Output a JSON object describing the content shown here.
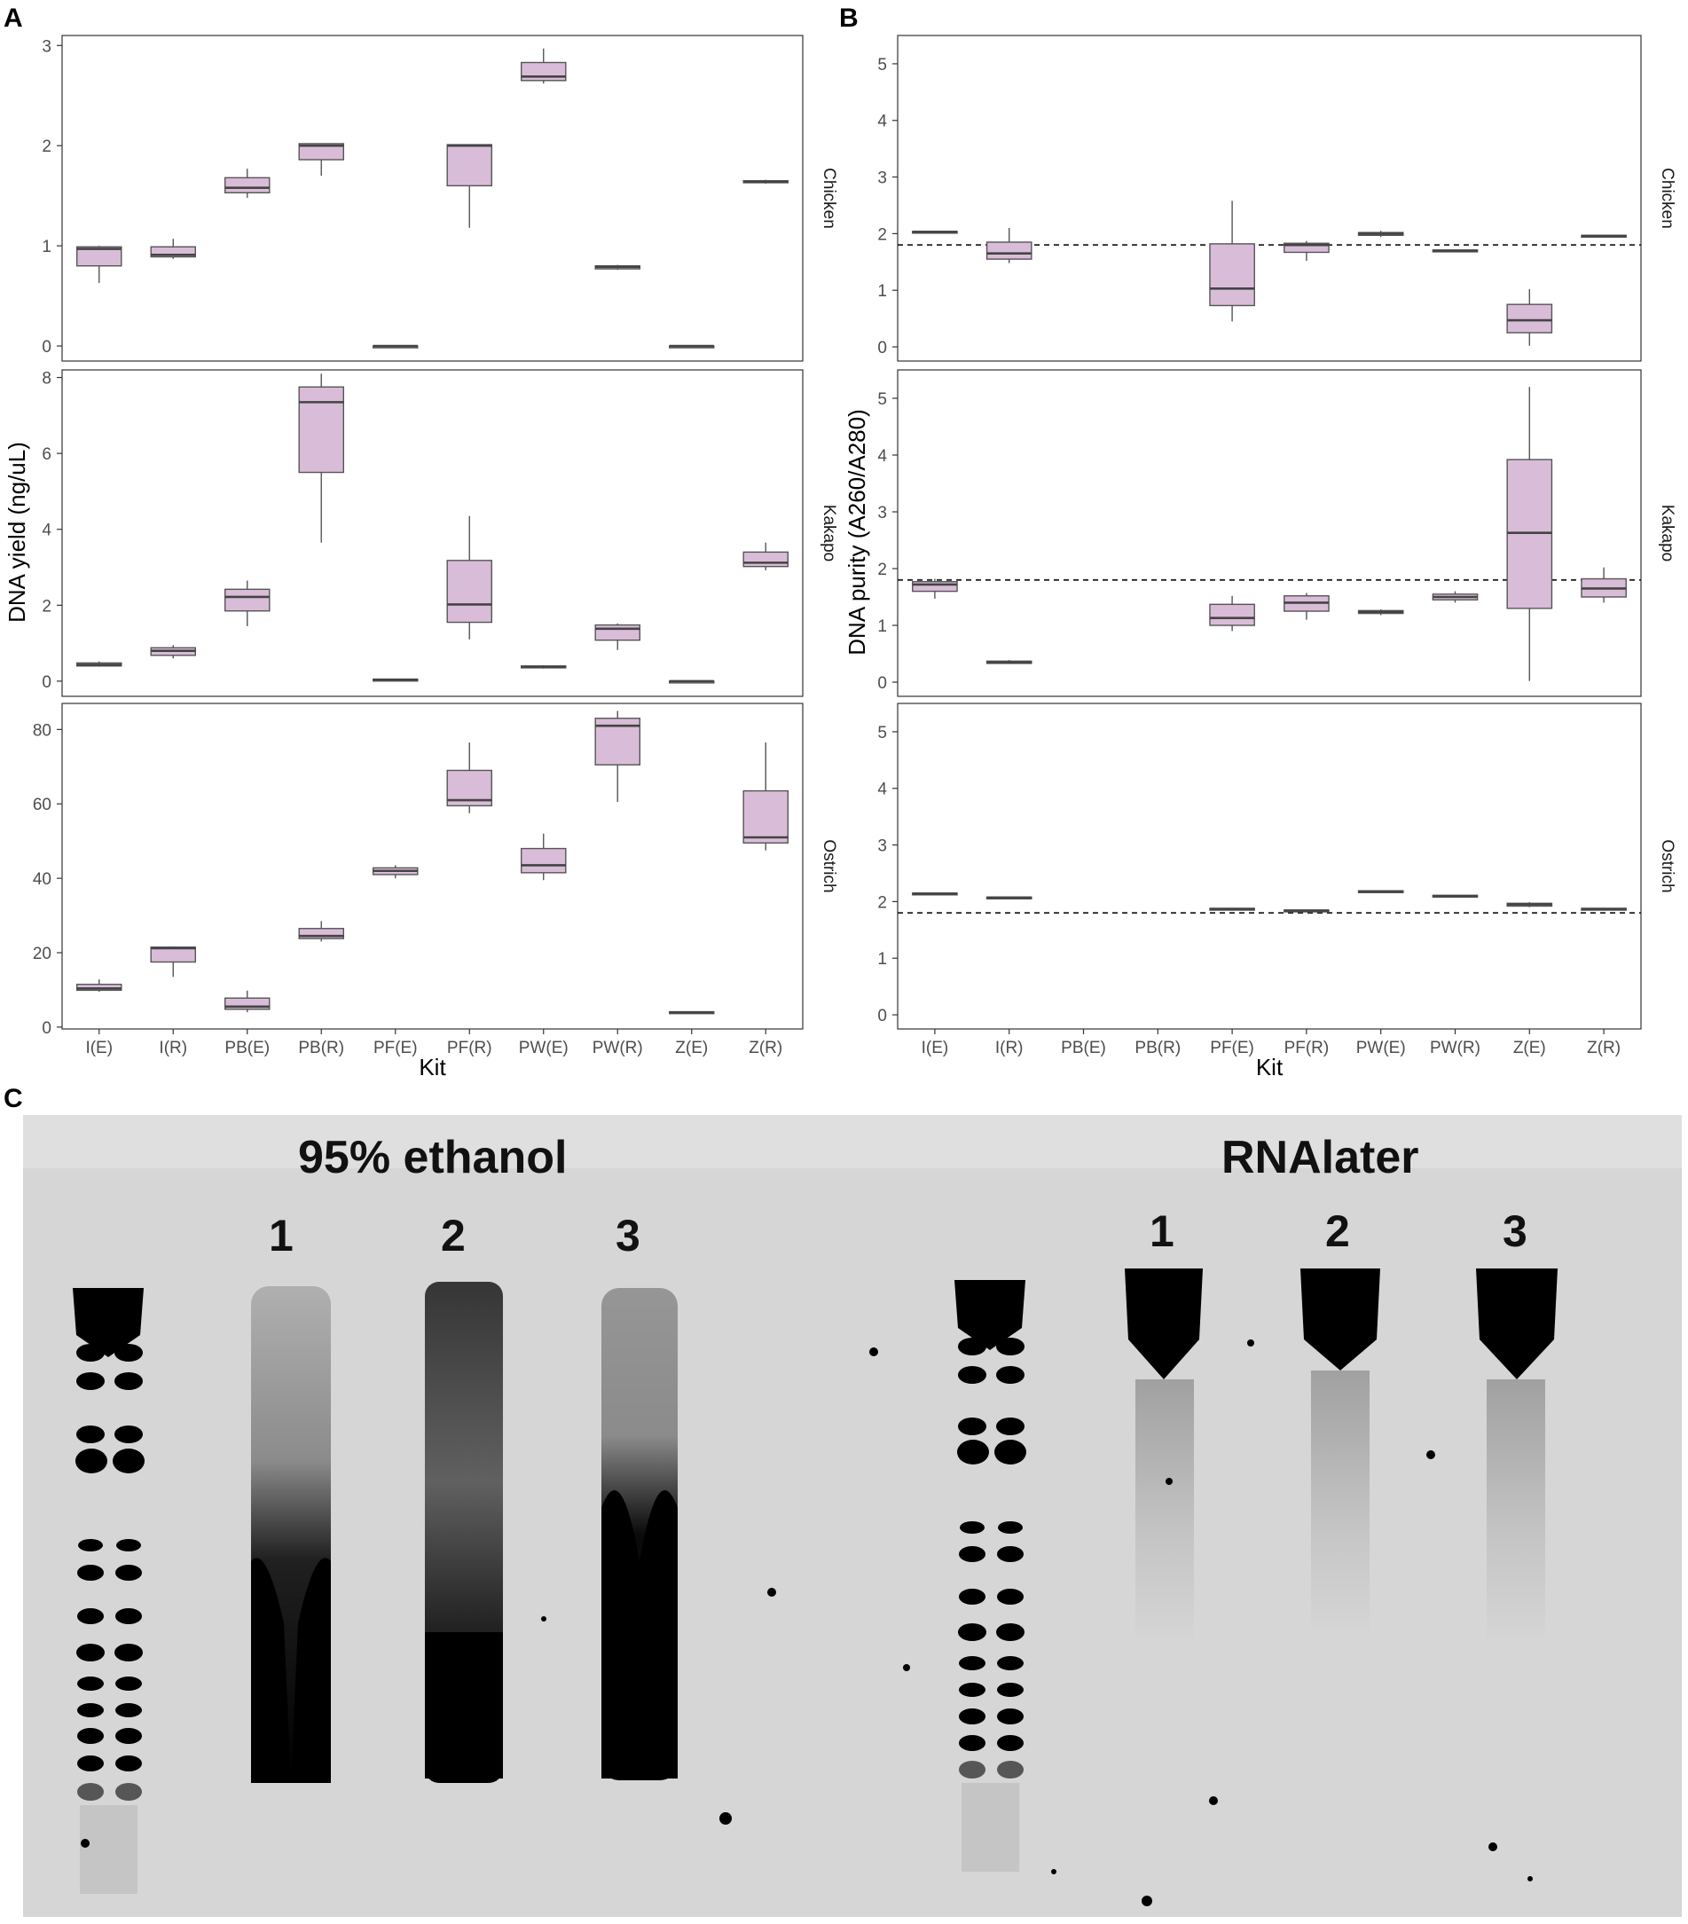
{
  "panels": {
    "a": "A",
    "b": "B",
    "c": "C"
  },
  "chart_data": [
    {
      "type": "box",
      "panel": "A",
      "ylabel": "DNA yield (ng/uL)",
      "xlabel": "Kit",
      "categories": [
        "I(E)",
        "I(R)",
        "PB(E)",
        "PB(R)",
        "PF(E)",
        "PF(R)",
        "PW(E)",
        "PW(R)",
        "Z(E)",
        "Z(R)"
      ],
      "box_fill": "#d9bdd8",
      "facets": [
        {
          "name": "Chicken",
          "ylim": [
            -0.15,
            3.1
          ],
          "yticks": [
            0,
            1,
            2,
            3
          ],
          "boxes": [
            {
              "min": 0.63,
              "q1": 0.8,
              "median": 0.97,
              "q3": 0.99,
              "max": 1.0
            },
            {
              "min": 0.87,
              "q1": 0.89,
              "median": 0.91,
              "q3": 0.99,
              "max": 1.07
            },
            {
              "min": 1.48,
              "q1": 1.53,
              "median": 1.58,
              "q3": 1.68,
              "max": 1.77
            },
            {
              "min": 1.7,
              "q1": 1.86,
              "median": 2.0,
              "q3": 2.02,
              "max": 2.02
            },
            {
              "min": 0.0,
              "q1": 0.0,
              "median": 0.0,
              "q3": 0.0,
              "max": 0.0
            },
            {
              "min": 1.18,
              "q1": 1.6,
              "median": 2.0,
              "q3": 2.01,
              "max": 2.01
            },
            {
              "min": 2.62,
              "q1": 2.65,
              "median": 2.69,
              "q3": 2.83,
              "max": 2.97
            },
            {
              "min": 0.76,
              "q1": 0.77,
              "median": 0.79,
              "q3": 0.8,
              "max": 0.81
            },
            {
              "min": 0.0,
              "q1": 0.0,
              "median": 0.0,
              "q3": 0.0,
              "max": 0.0
            },
            {
              "min": 1.62,
              "q1": 1.63,
              "median": 1.64,
              "q3": 1.65,
              "max": 1.66
            }
          ]
        },
        {
          "name": "Kakapo",
          "ylim": [
            -0.4,
            8.2
          ],
          "yticks": [
            0,
            2,
            4,
            6,
            8
          ],
          "boxes": [
            {
              "min": 0.38,
              "q1": 0.4,
              "median": 0.43,
              "q3": 0.48,
              "max": 0.52
            },
            {
              "min": 0.6,
              "q1": 0.68,
              "median": 0.8,
              "q3": 0.88,
              "max": 0.95
            },
            {
              "min": 1.45,
              "q1": 1.85,
              "median": 2.22,
              "q3": 2.42,
              "max": 2.65
            },
            {
              "min": 3.65,
              "q1": 5.5,
              "median": 7.35,
              "q3": 7.75,
              "max": 8.1
            },
            {
              "min": 0.02,
              "q1": 0.03,
              "median": 0.04,
              "q3": 0.05,
              "max": 0.06
            },
            {
              "min": 1.1,
              "q1": 1.55,
              "median": 2.02,
              "q3": 3.18,
              "max": 4.35
            },
            {
              "min": 0.33,
              "q1": 0.35,
              "median": 0.38,
              "q3": 0.4,
              "max": 0.42
            },
            {
              "min": 0.82,
              "q1": 1.08,
              "median": 1.38,
              "q3": 1.48,
              "max": 1.52
            },
            {
              "min": 0.0,
              "q1": 0.0,
              "median": 0.0,
              "q3": 0.0,
              "max": 0.0
            },
            {
              "min": 2.92,
              "q1": 3.02,
              "median": 3.12,
              "q3": 3.4,
              "max": 3.65
            }
          ]
        },
        {
          "name": "Ostrich",
          "ylim": [
            -0.5,
            87
          ],
          "yticks": [
            0,
            20,
            40,
            60,
            80
          ],
          "boxes": [
            {
              "min": 9.5,
              "q1": 9.9,
              "median": 10.4,
              "q3": 11.5,
              "max": 12.8
            },
            {
              "min": 13.5,
              "q1": 17.5,
              "median": 21.2,
              "q3": 21.5,
              "max": 21.7
            },
            {
              "min": 4.0,
              "q1": 4.8,
              "median": 5.5,
              "q3": 7.8,
              "max": 9.8
            },
            {
              "min": 23.0,
              "q1": 23.8,
              "median": 24.5,
              "q3": 26.5,
              "max": 28.5
            },
            {
              "min": 40.0,
              "q1": 41.0,
              "median": 42.0,
              "q3": 42.8,
              "max": 43.5
            },
            {
              "min": 57.5,
              "q1": 59.5,
              "median": 61.0,
              "q3": 69.0,
              "max": 76.5
            },
            {
              "min": 39.5,
              "q1": 41.5,
              "median": 43.5,
              "q3": 48.0,
              "max": 52.0
            },
            {
              "min": 60.5,
              "q1": 70.5,
              "median": 81.0,
              "q3": 83.0,
              "max": 85.0
            },
            {
              "min": 3.8,
              "q1": 3.9,
              "median": 4.0,
              "q3": 4.1,
              "max": 4.2
            },
            {
              "min": 47.5,
              "q1": 49.5,
              "median": 51.0,
              "q3": 63.5,
              "max": 76.5
            }
          ]
        }
      ]
    },
    {
      "type": "box",
      "panel": "B",
      "ylabel": "DNA purity (A260/A280)",
      "xlabel": "Kit",
      "categories": [
        "I(E)",
        "I(R)",
        "PB(E)",
        "PB(R)",
        "PF(E)",
        "PF(R)",
        "PW(E)",
        "PW(R)",
        "Z(E)",
        "Z(R)"
      ],
      "reference_line": 1.8,
      "box_fill": "#d9bdd8",
      "facets": [
        {
          "name": "Chicken",
          "ylim": [
            -0.25,
            5.5
          ],
          "yticks": [
            0,
            1,
            2,
            3,
            4,
            5
          ],
          "boxes": [
            {
              "min": 2.01,
              "q1": 2.02,
              "median": 2.03,
              "q3": 2.04,
              "max": 2.05
            },
            {
              "min": 1.48,
              "q1": 1.55,
              "median": 1.65,
              "q3": 1.85,
              "max": 2.1
            },
            null,
            null,
            {
              "min": 0.45,
              "q1": 0.73,
              "median": 1.03,
              "q3": 1.82,
              "max": 2.58
            },
            {
              "min": 1.52,
              "q1": 1.67,
              "median": 1.8,
              "q3": 1.83,
              "max": 1.87
            },
            {
              "min": 1.94,
              "q1": 1.97,
              "median": 2.0,
              "q3": 2.02,
              "max": 2.05
            },
            {
              "min": 1.68,
              "q1": 1.69,
              "median": 1.7,
              "q3": 1.71,
              "max": 1.72
            },
            {
              "min": 0.02,
              "q1": 0.25,
              "median": 0.47,
              "q3": 0.75,
              "max": 1.02
            },
            {
              "min": 1.94,
              "q1": 1.95,
              "median": 1.96,
              "q3": 1.97,
              "max": 1.98
            }
          ]
        },
        {
          "name": "Kakapo",
          "ylim": [
            -0.25,
            5.5
          ],
          "yticks": [
            0,
            1,
            2,
            3,
            4,
            5
          ],
          "boxes": [
            {
              "min": 1.47,
              "q1": 1.6,
              "median": 1.72,
              "q3": 1.77,
              "max": 1.82
            },
            {
              "min": 0.32,
              "q1": 0.33,
              "median": 0.35,
              "q3": 0.37,
              "max": 0.39
            },
            null,
            null,
            {
              "min": 0.9,
              "q1": 1.0,
              "median": 1.13,
              "q3": 1.37,
              "max": 1.52
            },
            {
              "min": 1.1,
              "q1": 1.25,
              "median": 1.4,
              "q3": 1.52,
              "max": 1.57
            },
            {
              "min": 1.18,
              "q1": 1.21,
              "median": 1.24,
              "q3": 1.26,
              "max": 1.28
            },
            {
              "min": 1.4,
              "q1": 1.45,
              "median": 1.5,
              "q3": 1.55,
              "max": 1.6
            },
            {
              "min": 0.02,
              "q1": 1.3,
              "median": 2.63,
              "q3": 3.92,
              "max": 5.2
            },
            {
              "min": 1.4,
              "q1": 1.5,
              "median": 1.65,
              "q3": 1.82,
              "max": 2.02
            }
          ]
        },
        {
          "name": "Ostrich",
          "ylim": [
            -0.25,
            5.5
          ],
          "yticks": [
            0,
            1,
            2,
            3,
            4,
            5
          ],
          "boxes": [
            {
              "min": 2.12,
              "q1": 2.13,
              "median": 2.14,
              "q3": 2.15,
              "max": 2.16
            },
            {
              "min": 2.06,
              "q1": 2.06,
              "median": 2.07,
              "q3": 2.08,
              "max": 2.08
            },
            null,
            null,
            {
              "min": 1.86,
              "q1": 1.86,
              "median": 1.87,
              "q3": 1.88,
              "max": 1.88
            },
            {
              "min": 1.82,
              "q1": 1.83,
              "median": 1.84,
              "q3": 1.85,
              "max": 1.85
            },
            {
              "min": 2.16,
              "q1": 2.17,
              "median": 2.18,
              "q3": 2.19,
              "max": 2.2
            },
            {
              "min": 2.09,
              "q1": 2.09,
              "median": 2.1,
              "q3": 2.11,
              "max": 2.11
            },
            {
              "min": 1.9,
              "q1": 1.92,
              "median": 1.95,
              "q3": 1.97,
              "max": 1.99
            },
            {
              "min": 1.85,
              "q1": 1.86,
              "median": 1.87,
              "q3": 1.88,
              "max": 1.89
            }
          ]
        }
      ]
    }
  ],
  "gel": {
    "left_title": "95% ethanol",
    "right_title": "RNAlater",
    "lane_numbers": [
      "1",
      "2",
      "3"
    ]
  }
}
